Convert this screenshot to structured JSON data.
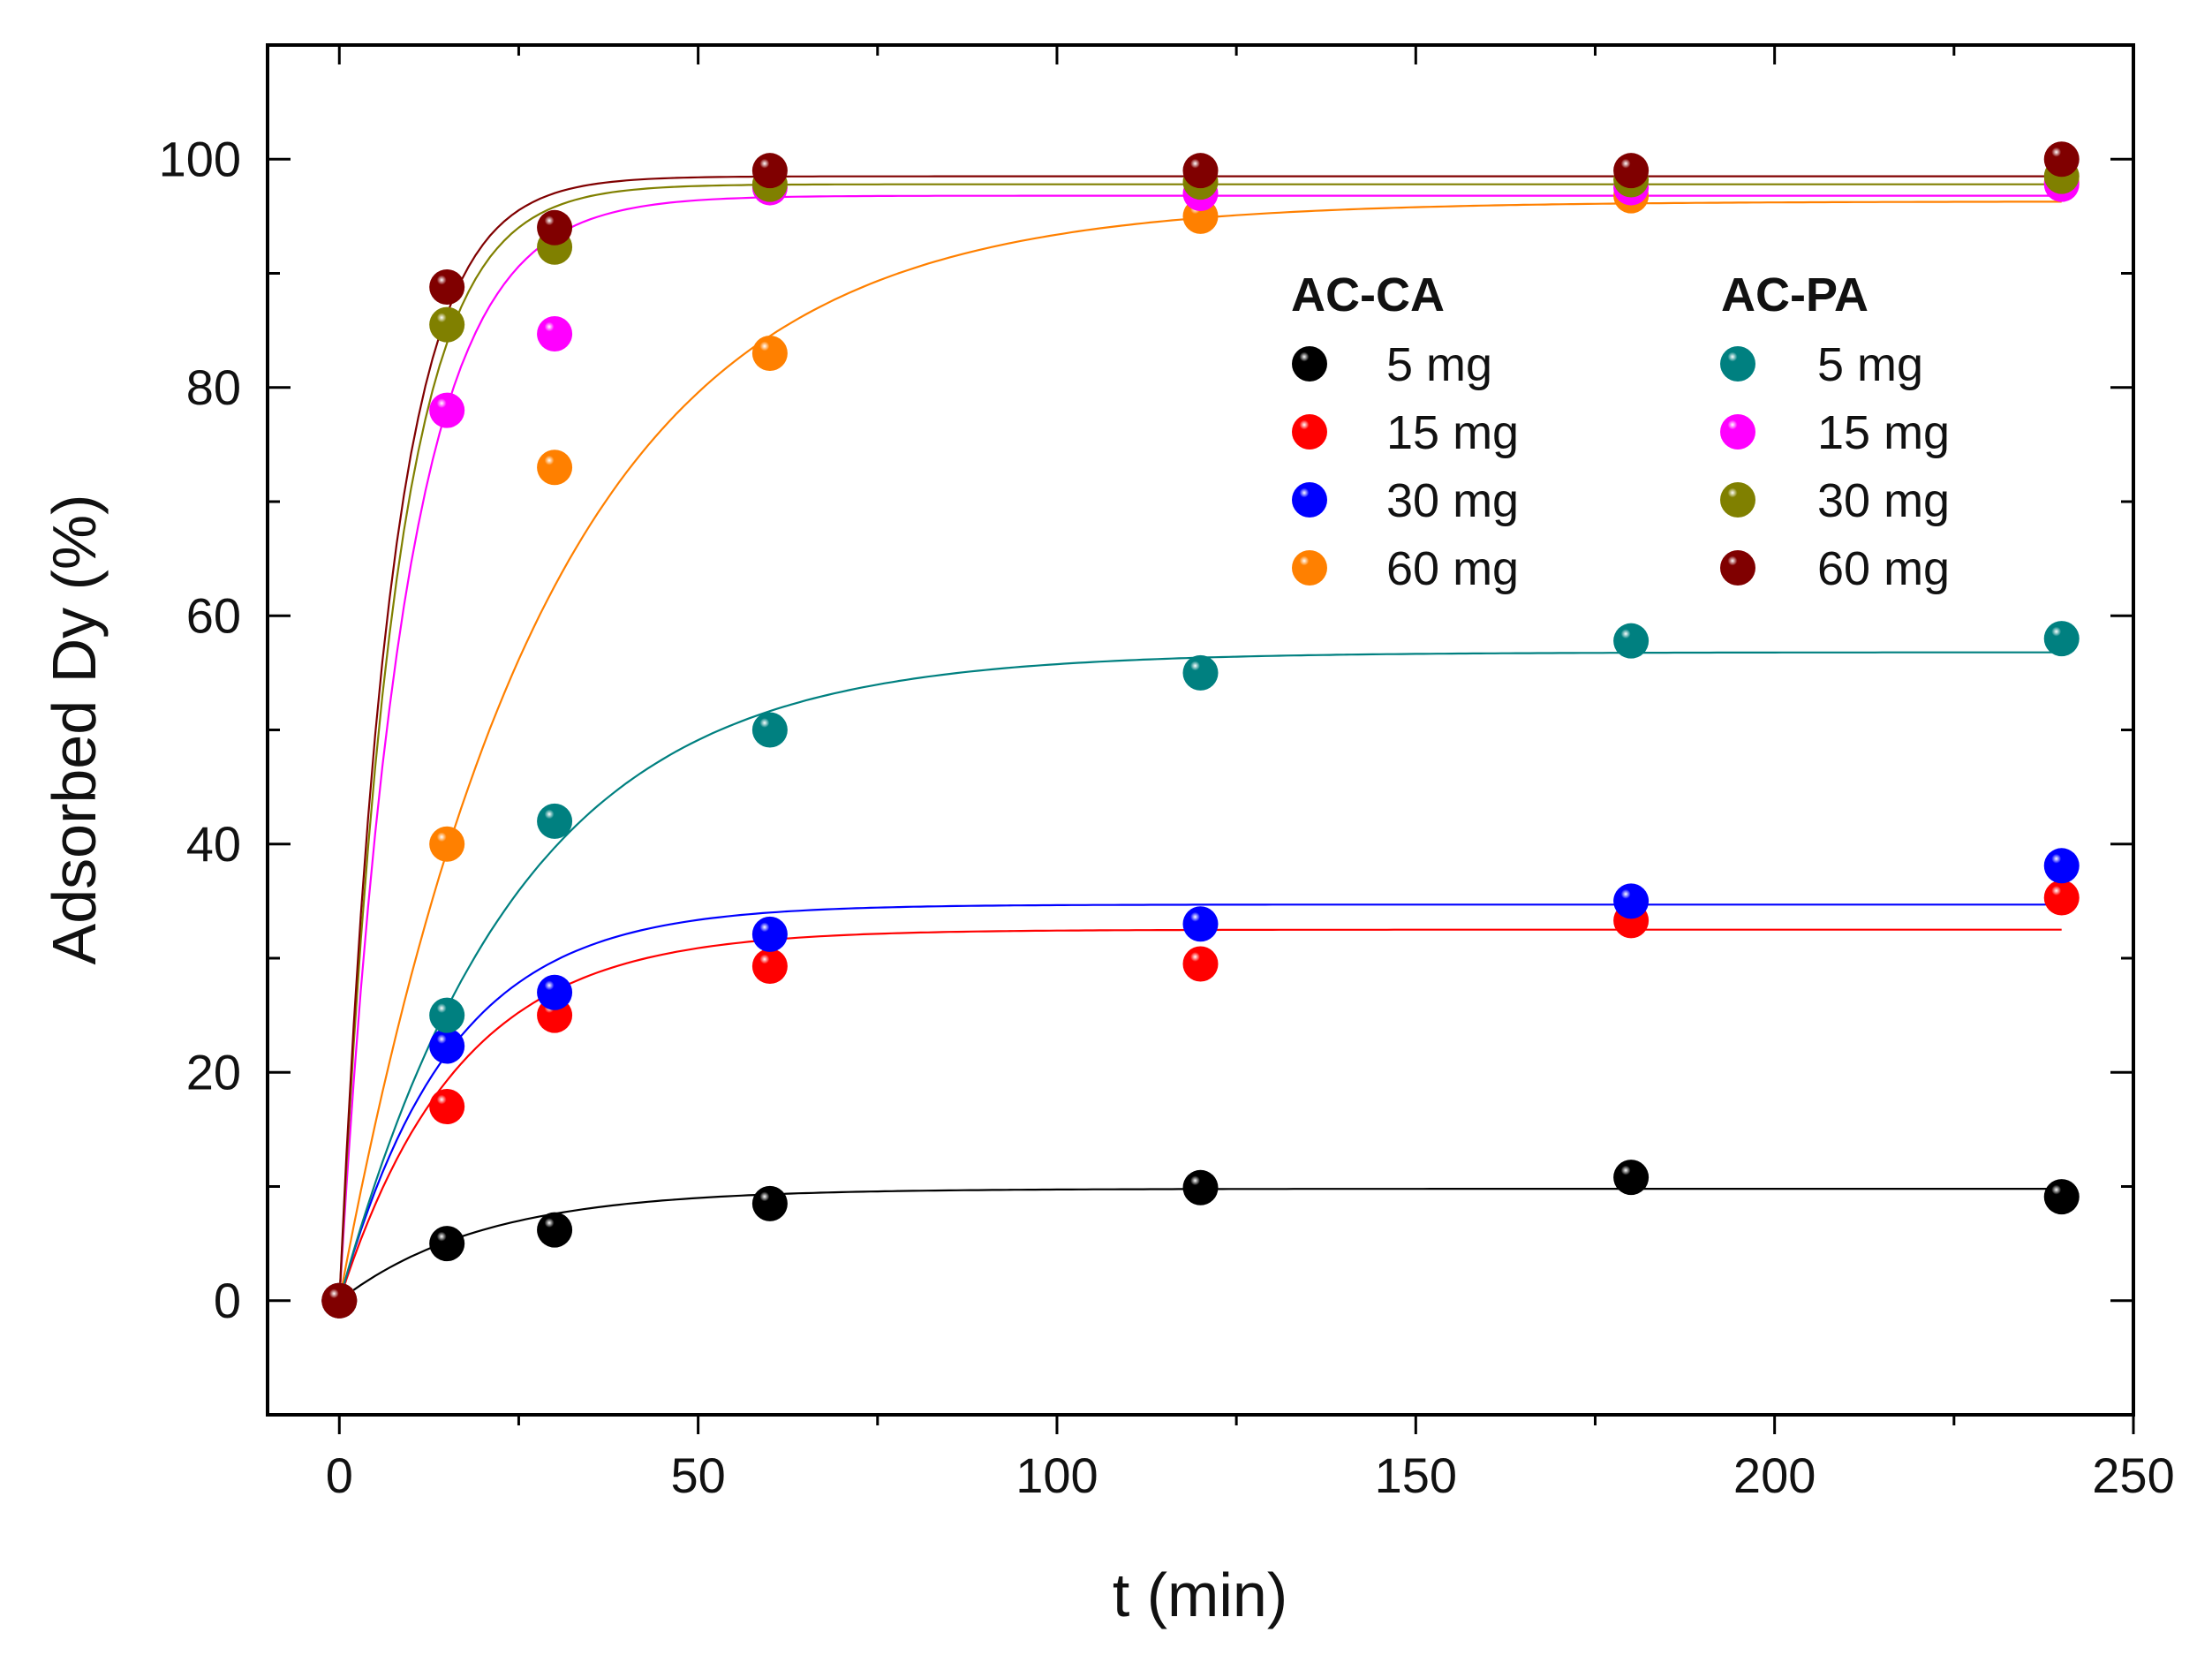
{
  "chart_data": {
    "type": "scatter",
    "title": "",
    "xlabel": "t (min)",
    "ylabel": "Adsorbed Dy (%)",
    "xlim": [
      -10,
      250
    ],
    "ylim": [
      -10,
      110
    ],
    "xticks": [
      0,
      50,
      100,
      150,
      200,
      250
    ],
    "yticks": [
      0,
      20,
      40,
      60,
      80,
      100
    ],
    "grid": false,
    "legend_placement": "top-right",
    "legend_groups": [
      {
        "title": "AC-CA",
        "series": [
          0,
          1,
          2,
          3
        ]
      },
      {
        "title": "AC-PA",
        "series": [
          4,
          5,
          6,
          7
        ]
      }
    ],
    "x": [
      0,
      15,
      30,
      60,
      120,
      180,
      240
    ],
    "series": [
      {
        "group": "AC-CA",
        "name": "5 mg",
        "color": "#000000",
        "values": [
          0,
          5.0,
          6.2,
          8.5,
          9.9,
          10.8,
          9.1
        ],
        "fit": {
          "qe": 9.8,
          "k": 0.05
        }
      },
      {
        "group": "AC-CA",
        "name": "15 mg",
        "color": "#ff0000",
        "values": [
          0,
          17.0,
          25.0,
          29.3,
          29.5,
          33.3,
          35.3
        ],
        "fit": {
          "qe": 32.5,
          "k": 0.06
        }
      },
      {
        "group": "AC-CA",
        "name": "30 mg",
        "color": "#0000ff",
        "values": [
          0,
          22.3,
          27.0,
          32.1,
          33.0,
          35.0,
          38.1
        ],
        "fit": {
          "qe": 34.7,
          "k": 0.065
        }
      },
      {
        "group": "AC-CA",
        "name": "60 mg",
        "color": "#ff8000",
        "values": [
          0,
          40.0,
          73.0,
          83.0,
          95.0,
          96.8,
          98.0
        ],
        "fit": {
          "qe": 96.3,
          "k": 0.035
        }
      },
      {
        "group": "AC-PA",
        "name": "5 mg",
        "color": "#008080",
        "values": [
          0,
          25.0,
          42.0,
          50.0,
          55.0,
          57.8,
          58.0
        ],
        "fit": {
          "qe": 56.8,
          "k": 0.04
        }
      },
      {
        "group": "AC-PA",
        "name": "15 mg",
        "color": "#ff00ff",
        "values": [
          0,
          78.0,
          84.7,
          97.5,
          97.0,
          97.5,
          97.8
        ],
        "fit": {
          "qe": 96.8,
          "k": 0.11
        }
      },
      {
        "group": "AC-PA",
        "name": "30 mg",
        "color": "#808000",
        "values": [
          0,
          85.5,
          92.3,
          97.8,
          98.0,
          98.2,
          98.5
        ],
        "fit": {
          "qe": 97.8,
          "k": 0.13
        }
      },
      {
        "group": "AC-PA",
        "name": "60 mg",
        "color": "#800000",
        "values": [
          0,
          88.8,
          94.0,
          99.0,
          99.0,
          99.0,
          100.0
        ],
        "fit": {
          "qe": 98.5,
          "k": 0.14
        }
      }
    ]
  }
}
